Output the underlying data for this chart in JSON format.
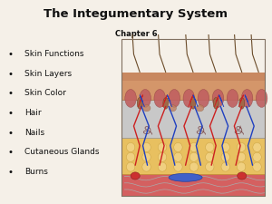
{
  "title": "The Integumentary System",
  "subtitle": "Chapter 6",
  "bullet_points": [
    "Skin Functions",
    "Skin Layers",
    "Skin Color",
    "Hair",
    "Nails",
    "Cutaneous Glands",
    "Burns"
  ],
  "background_color": "#f5f0e8",
  "title_color": "#111111",
  "subtitle_color": "#111111",
  "bullet_color": "#111111",
  "title_fontsize": 9.5,
  "subtitle_fontsize": 6.0,
  "bullet_fontsize": 6.5,
  "title_fontstyle": "bold"
}
